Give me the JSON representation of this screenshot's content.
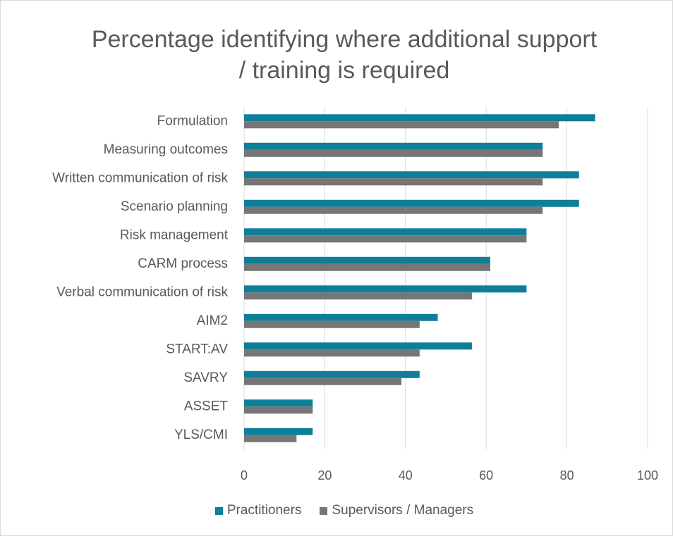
{
  "chart_data": {
    "type": "bar",
    "orientation": "horizontal",
    "title": "Percentage identifying where additional support / training is required",
    "categories": [
      "Formulation",
      "Measuring outcomes",
      "Written communication of risk",
      "Scenario planning",
      "Risk management",
      "CARM process",
      "Verbal communication of risk",
      "AIM2",
      "START:AV",
      "SAVRY",
      "ASSET",
      "YLS/CMI"
    ],
    "series": [
      {
        "name": "Practitioners",
        "color": "#0f7f99",
        "values": [
          87,
          74,
          83,
          83,
          70,
          61,
          70,
          48,
          56.5,
          43.5,
          17,
          17
        ]
      },
      {
        "name": "Supervisors / Managers",
        "color": "#767676",
        "values": [
          78,
          74,
          74,
          74,
          70,
          61,
          56.5,
          43.5,
          43.5,
          39,
          17,
          13
        ]
      }
    ],
    "xlim": [
      0,
      100
    ],
    "xticks": [
      0,
      20,
      40,
      60,
      80,
      100
    ],
    "grid": true,
    "legend": "bottom"
  }
}
